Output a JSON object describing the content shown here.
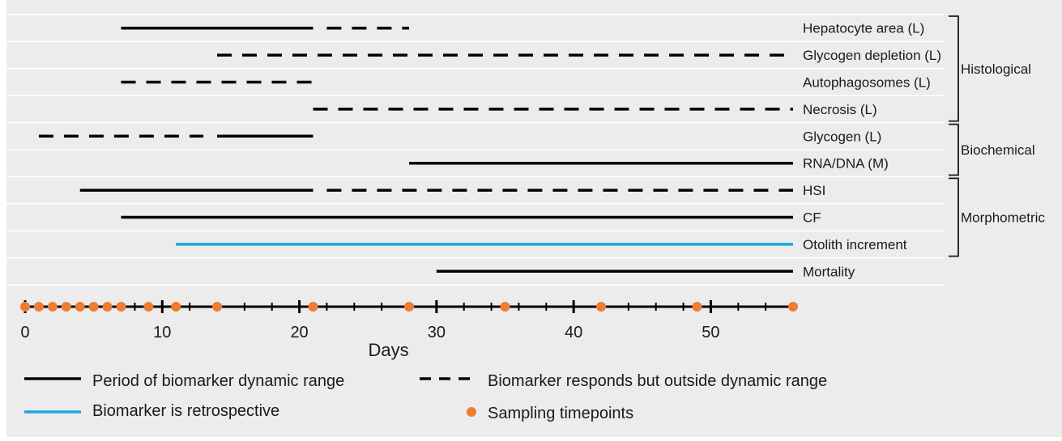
{
  "chart_data": {
    "type": "timeline",
    "xlabel": "Days",
    "xlim": [
      0,
      56
    ],
    "x_ticks": [
      0,
      10,
      20,
      30,
      40,
      50
    ],
    "rows": [
      {
        "label": "Hepatocyte area (L)",
        "segments": [
          {
            "start": 7,
            "end": 21,
            "style": "solid"
          },
          {
            "start": 22,
            "end": 28,
            "style": "dashed"
          }
        ]
      },
      {
        "label": "Glycogen depletion (L)",
        "segments": [
          {
            "start": 14,
            "end": 56,
            "style": "dashed"
          }
        ]
      },
      {
        "label": "Autophagosomes (L)",
        "segments": [
          {
            "start": 7,
            "end": 21,
            "style": "dashed"
          }
        ]
      },
      {
        "label": "Necrosis (L)",
        "segments": [
          {
            "start": 21,
            "end": 56,
            "style": "dashed"
          }
        ]
      },
      {
        "label": "Glycogen (L)",
        "segments": [
          {
            "start": 1,
            "end": 13,
            "style": "dashed"
          },
          {
            "start": 14,
            "end": 21,
            "style": "solid"
          }
        ]
      },
      {
        "label": "RNA/DNA (M)",
        "segments": [
          {
            "start": 28,
            "end": 56,
            "style": "solid"
          }
        ]
      },
      {
        "label": "HSI",
        "segments": [
          {
            "start": 4,
            "end": 21,
            "style": "solid"
          },
          {
            "start": 22,
            "end": 56,
            "style": "dashed"
          }
        ]
      },
      {
        "label": "CF",
        "segments": [
          {
            "start": 7,
            "end": 56,
            "style": "solid"
          }
        ]
      },
      {
        "label": "Otolith increment",
        "segments": [
          {
            "start": 11,
            "end": 56,
            "style": "retrospective"
          }
        ]
      },
      {
        "label": "Mortality",
        "segments": [
          {
            "start": 30,
            "end": 56,
            "style": "solid"
          }
        ]
      }
    ],
    "groups": [
      {
        "label": "Histological",
        "first_row": 0,
        "last_row": 3
      },
      {
        "label": "Biochemical",
        "first_row": 4,
        "last_row": 5
      },
      {
        "label": "Morphometric",
        "first_row": 6,
        "last_row": 8
      }
    ],
    "sampling_timepoints": [
      0,
      1,
      2,
      3,
      4,
      5,
      6,
      7,
      9,
      11,
      14,
      21,
      28,
      35,
      42,
      49,
      56
    ],
    "legend": [
      {
        "label": "Period of biomarker dynamic range",
        "style": "solid"
      },
      {
        "label": "Biomarker responds but outside dynamic range",
        "style": "dashed"
      },
      {
        "label": "Biomarker is retrospective",
        "style": "retrospective"
      },
      {
        "label": "Sampling timepoints",
        "style": "marker"
      }
    ],
    "colors": {
      "background": "#ececec",
      "line": "#000000",
      "retrospective": "#1ba6e0",
      "marker": "#ed7d31",
      "row_separator": "#ffffff"
    },
    "grid": false
  }
}
